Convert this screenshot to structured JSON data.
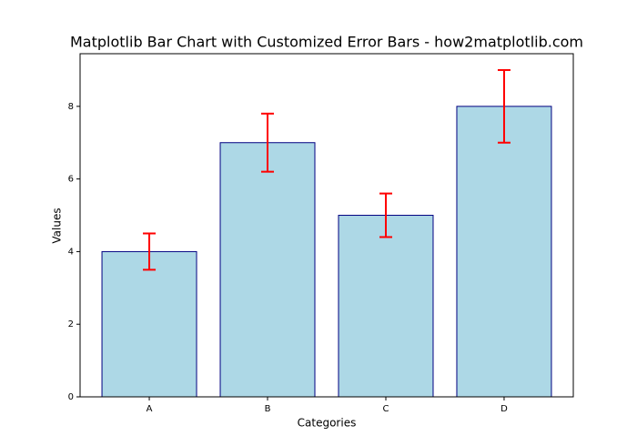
{
  "chart_data": {
    "type": "bar",
    "title": "Matplotlib Bar Chart with Customized Error Bars - how2matplotlib.com",
    "x_label": "Categories",
    "y_label": "Values",
    "categories": [
      "A",
      "B",
      "C",
      "D"
    ],
    "values": [
      4,
      7,
      5,
      8
    ],
    "errors": [
      0.5,
      0.8,
      0.6,
      1.0
    ],
    "color": "#add8e6",
    "edge_color": "#000080",
    "error_color": "#ff0000",
    "ylim": [
      0,
      9.45
    ],
    "yticks": [
      0,
      2,
      4,
      6,
      8
    ],
    "grid": false
  }
}
